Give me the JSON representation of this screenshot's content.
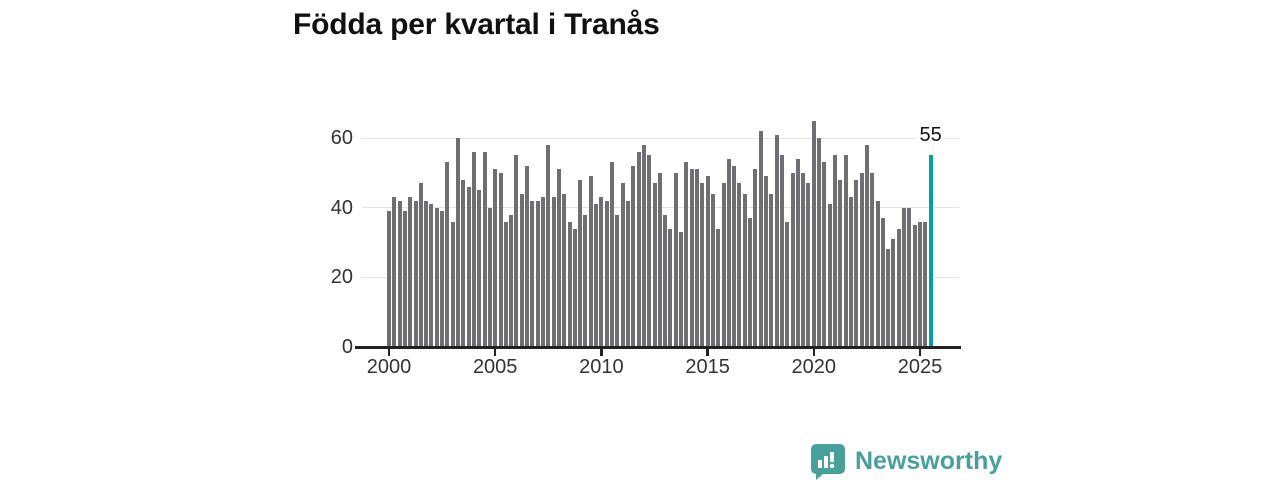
{
  "title": "Födda per kvartal i Tranås",
  "watermark": {
    "text": "Newsworthy"
  },
  "chart_data": {
    "type": "bar",
    "title": "Födda per kvartal i Tranås",
    "x_start": "2000 Q1",
    "x_end": "2025 Q3",
    "frequency": "quarterly",
    "values": [
      39,
      43,
      42,
      39,
      43,
      42,
      47,
      42,
      41,
      40,
      39,
      53,
      36,
      60,
      48,
      46,
      56,
      45,
      56,
      40,
      51,
      50,
      36,
      38,
      55,
      44,
      52,
      42,
      42,
      43,
      58,
      43,
      51,
      44,
      36,
      34,
      48,
      38,
      49,
      41,
      43,
      42,
      53,
      38,
      47,
      42,
      52,
      56,
      58,
      55,
      47,
      50,
      38,
      34,
      50,
      33,
      53,
      51,
      51,
      47,
      49,
      44,
      34,
      47,
      54,
      52,
      47,
      44,
      37,
      51,
      62,
      49,
      44,
      61,
      55,
      36,
      50,
      54,
      50,
      47,
      65,
      60,
      53,
      41,
      55,
      48,
      55,
      43,
      48,
      50,
      58,
      50,
      42,
      37,
      28,
      31,
      34,
      40,
      40,
      35,
      36,
      36,
      55
    ],
    "highlight_index": 102,
    "highlight_label": "55",
    "x_tick_labels": [
      "2000",
      "2005",
      "2010",
      "2015",
      "2020",
      "2025"
    ],
    "x_tick_indices": [
      0,
      20,
      40,
      60,
      80,
      100
    ],
    "y_ticks": [
      0,
      20,
      40,
      60
    ],
    "ylim": [
      0,
      65
    ],
    "grid": true,
    "legend": false,
    "colors": {
      "bar": "#6e6e73",
      "highlight": "#00a39c",
      "grid": "#e3e3e3",
      "axis": "#222222",
      "tick_text": "#333333",
      "title_text": "#111111",
      "brand": "#47a19b"
    }
  }
}
